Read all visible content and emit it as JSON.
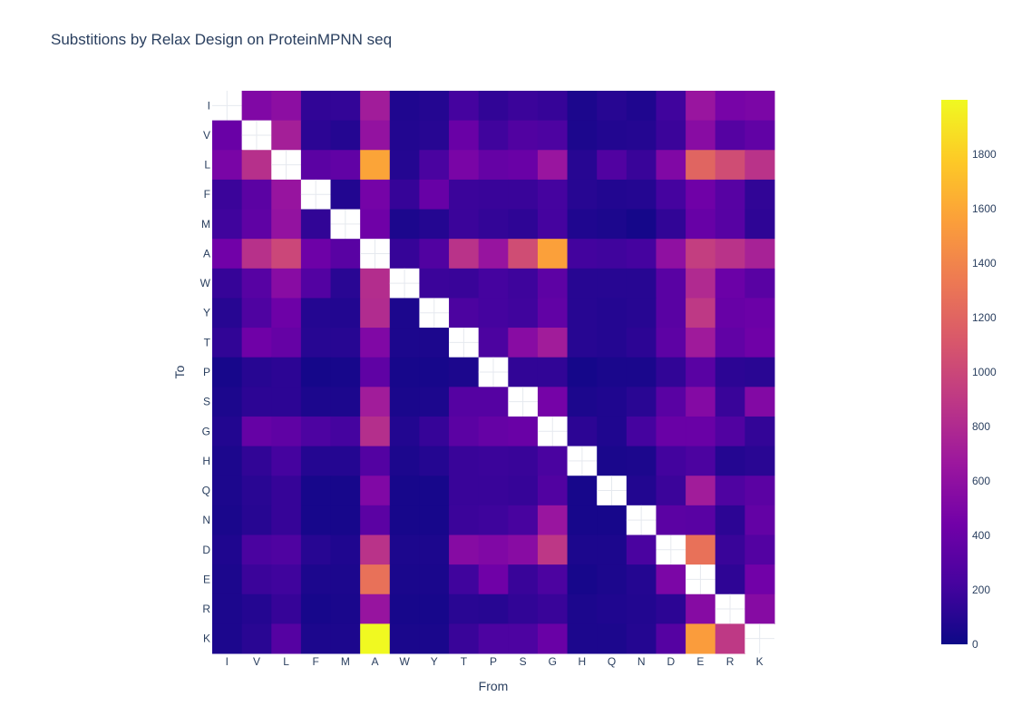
{
  "chart_data": {
    "type": "heatmap",
    "title": "Substitions by Relax Design on ProteinMPNN seq",
    "xlabel": "From",
    "ylabel": "To",
    "x": [
      "I",
      "V",
      "L",
      "F",
      "M",
      "A",
      "W",
      "Y",
      "T",
      "P",
      "S",
      "G",
      "H",
      "Q",
      "N",
      "D",
      "E",
      "R",
      "K"
    ],
    "y": [
      "I",
      "V",
      "L",
      "F",
      "M",
      "A",
      "W",
      "Y",
      "T",
      "P",
      "S",
      "G",
      "H",
      "Q",
      "N",
      "D",
      "E",
      "R",
      "K"
    ],
    "z": [
      [
        null,
        520,
        580,
        140,
        150,
        700,
        70,
        90,
        220,
        140,
        180,
        160,
        60,
        100,
        70,
        200,
        650,
        470,
        490
      ],
      [
        400,
        null,
        720,
        120,
        90,
        620,
        80,
        100,
        400,
        200,
        280,
        260,
        60,
        80,
        90,
        180,
        560,
        300,
        360
      ],
      [
        480,
        840,
        null,
        330,
        360,
        1580,
        90,
        240,
        480,
        380,
        400,
        650,
        100,
        280,
        170,
        520,
        1200,
        1040,
        860
      ],
      [
        180,
        330,
        640,
        null,
        80,
        460,
        160,
        390,
        180,
        170,
        170,
        220,
        100,
        80,
        90,
        220,
        430,
        310,
        140
      ],
      [
        200,
        350,
        620,
        140,
        null,
        430,
        60,
        90,
        180,
        150,
        130,
        220,
        70,
        60,
        30,
        140,
        390,
        310,
        130
      ],
      [
        440,
        850,
        1000,
        420,
        320,
        null,
        160,
        280,
        860,
        640,
        1040,
        1560,
        210,
        200,
        220,
        600,
        940,
        860,
        740
      ],
      [
        160,
        310,
        560,
        290,
        110,
        820,
        null,
        180,
        170,
        220,
        190,
        340,
        100,
        100,
        100,
        320,
        800,
        410,
        320
      ],
      [
        100,
        270,
        420,
        90,
        80,
        810,
        60,
        null,
        250,
        220,
        200,
        360,
        100,
        90,
        100,
        320,
        900,
        390,
        410
      ],
      [
        140,
        430,
        380,
        100,
        100,
        520,
        60,
        60,
        null,
        250,
        560,
        700,
        100,
        90,
        120,
        340,
        690,
        360,
        430
      ],
      [
        40,
        100,
        120,
        30,
        40,
        350,
        40,
        40,
        60,
        null,
        140,
        140,
        30,
        50,
        50,
        140,
        320,
        120,
        110
      ],
      [
        60,
        120,
        120,
        60,
        60,
        700,
        50,
        60,
        300,
        300,
        null,
        460,
        60,
        70,
        110,
        320,
        540,
        170,
        530
      ],
      [
        80,
        380,
        350,
        260,
        220,
        830,
        80,
        160,
        330,
        380,
        400,
        null,
        120,
        70,
        220,
        400,
        400,
        280,
        150
      ],
      [
        60,
        140,
        220,
        90,
        90,
        290,
        60,
        90,
        170,
        180,
        170,
        240,
        null,
        50,
        60,
        210,
        250,
        90,
        110
      ],
      [
        60,
        110,
        160,
        40,
        40,
        520,
        40,
        40,
        170,
        170,
        160,
        280,
        40,
        null,
        80,
        180,
        700,
        270,
        330
      ],
      [
        50,
        100,
        160,
        40,
        40,
        330,
        40,
        40,
        180,
        190,
        230,
        650,
        40,
        40,
        null,
        330,
        320,
        120,
        370
      ],
      [
        70,
        240,
        270,
        100,
        70,
        860,
        60,
        60,
        550,
        520,
        560,
        890,
        60,
        60,
        240,
        null,
        1280,
        170,
        290
      ],
      [
        60,
        180,
        200,
        60,
        60,
        1280,
        50,
        50,
        200,
        430,
        170,
        250,
        40,
        60,
        90,
        490,
        null,
        130,
        440
      ],
      [
        60,
        90,
        160,
        40,
        50,
        640,
        40,
        40,
        110,
        100,
        140,
        170,
        60,
        70,
        80,
        120,
        550,
        null,
        550
      ],
      [
        60,
        110,
        300,
        60,
        60,
        2000,
        50,
        50,
        170,
        260,
        260,
        400,
        60,
        60,
        90,
        300,
        1540,
        900,
        null
      ]
    ],
    "zlim": [
      0,
      2000
    ],
    "colorscale": [
      "#0d0887",
      "#46039f",
      "#7201a8",
      "#9c179e",
      "#bd3786",
      "#d8576b",
      "#ed7953",
      "#fb9f3a",
      "#fdca26",
      "#f0f921"
    ],
    "colorbar_ticks": [
      0,
      200,
      400,
      600,
      800,
      1000,
      1200,
      1400,
      1600,
      1800
    ]
  }
}
